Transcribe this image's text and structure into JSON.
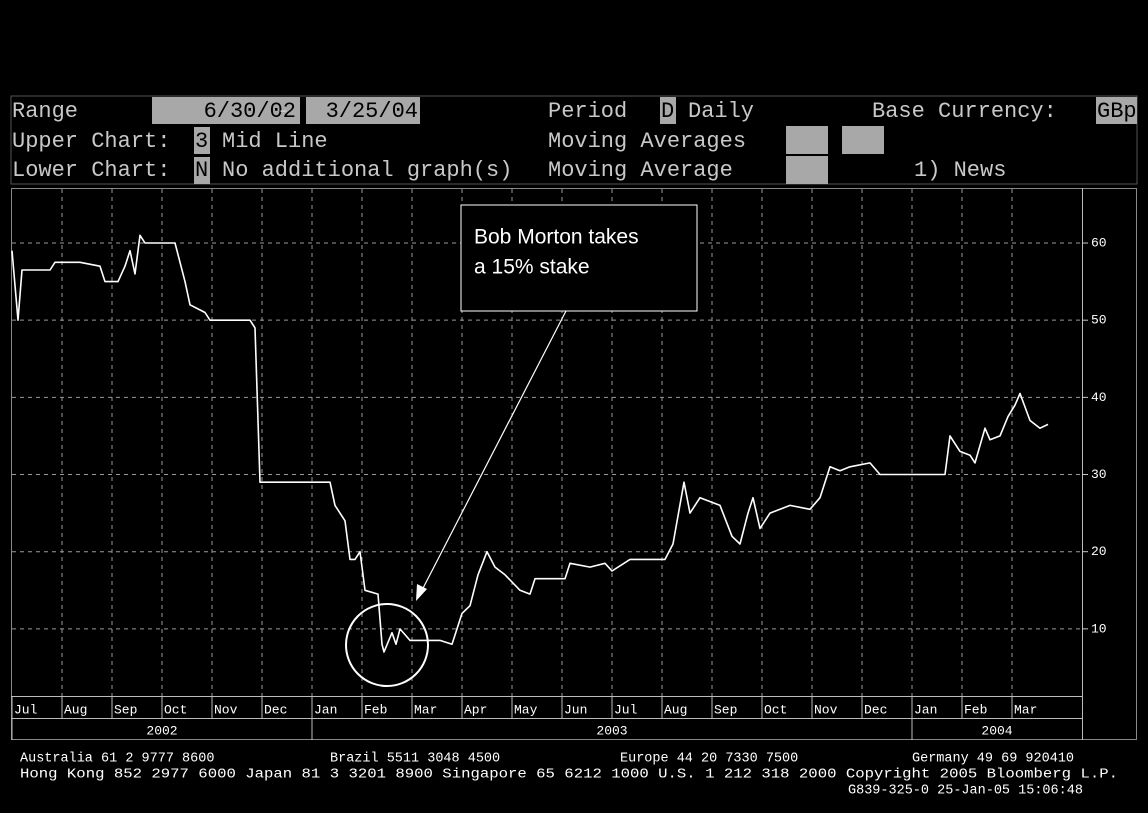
{
  "header": {
    "range_label": "Range",
    "range_start": "6/30/02",
    "range_sep": "-",
    "range_end": "3/25/04",
    "period_label": "Period",
    "period_code": "D",
    "period_value": "Daily",
    "base_currency_label": "Base Currency:",
    "base_currency": "GBp",
    "upper_label": "Upper Chart:",
    "upper_code": "3",
    "upper_value": "Mid Line",
    "moving_averages_label": "Moving Averages",
    "lower_label": "Lower Chart:",
    "lower_code": "N",
    "lower_value": "No additional graph(s)",
    "moving_average_label": "Moving Average",
    "news": "1) News"
  },
  "chart_data": {
    "type": "line",
    "annotation": [
      "Bob Morton takes",
      "a 15% stake"
    ],
    "xlim": [
      0,
      21.4
    ],
    "xticks": [
      {
        "value": 0,
        "label": "Jul"
      },
      {
        "value": 1,
        "label": "Aug"
      },
      {
        "value": 2,
        "label": "Sep"
      },
      {
        "value": 3,
        "label": "Oct"
      },
      {
        "value": 4,
        "label": "Nov"
      },
      {
        "value": 5,
        "label": "Dec"
      },
      {
        "value": 6,
        "label": "Jan"
      },
      {
        "value": 7,
        "label": "Feb"
      },
      {
        "value": 8,
        "label": "Mar"
      },
      {
        "value": 9,
        "label": "Apr"
      },
      {
        "value": 10,
        "label": "May"
      },
      {
        "value": 11,
        "label": "Jun"
      },
      {
        "value": 12,
        "label": "Jul"
      },
      {
        "value": 13,
        "label": "Aug"
      },
      {
        "value": 14,
        "label": "Sep"
      },
      {
        "value": 15,
        "label": "Oct"
      },
      {
        "value": 16,
        "label": "Nov"
      },
      {
        "value": 17,
        "label": "Dec"
      },
      {
        "value": 18,
        "label": "Jan"
      },
      {
        "value": 19,
        "label": "Feb"
      },
      {
        "value": 20,
        "label": "Mar"
      }
    ],
    "year_labels": [
      {
        "value": 0,
        "label": "2002"
      },
      {
        "value": 6,
        "label": "2003"
      },
      {
        "value": 18,
        "label": "2004"
      }
    ],
    "ylim": [
      1.3,
      67
    ],
    "yticks": [
      10,
      20,
      30,
      40,
      50,
      60
    ],
    "grid": true,
    "series": [
      {
        "color": "#ffffff",
        "x": [
          0,
          0.12,
          0.2,
          0.76,
          0.86,
          1.36,
          1.76,
          1.86,
          2.12,
          2.26,
          2.36,
          2.46,
          2.56,
          2.66,
          3.26,
          3.46,
          3.56,
          3.86,
          3.96,
          4.76,
          4.86,
          4.96,
          5.16,
          6.36,
          6.46,
          6.66,
          6.76,
          6.86,
          6.96,
          7.06,
          7.32,
          7.4,
          7.44,
          7.6,
          7.68,
          7.76,
          7.96,
          8.56,
          8.8,
          9,
          9.16,
          9.32,
          9.5,
          9.66,
          9.86,
          10.16,
          10.36,
          10.46,
          11.06,
          11.16,
          11.56,
          11.86,
          12,
          12.36,
          13.06,
          13.22,
          13.44,
          13.56,
          13.76,
          14.16,
          14.4,
          14.56,
          14.72,
          14.82,
          14.96,
          15.16,
          15.56,
          15.96,
          16.16,
          16.36,
          16.56,
          16.76,
          17.16,
          17.36,
          18.56,
          18.66,
          18.76,
          18.96,
          19.16,
          19.26,
          19.46,
          19.56,
          19.76,
          19.92,
          20.06,
          20.16,
          20.36,
          20.56,
          20.72
        ],
        "values": [
          59,
          50,
          56.5,
          56.5,
          57.5,
          57.5,
          57,
          55,
          55,
          57,
          59,
          56,
          61,
          60,
          60,
          55,
          52,
          51,
          50,
          50,
          49,
          29,
          29,
          29,
          26,
          24,
          19,
          19,
          20,
          15,
          14.5,
          8,
          7,
          9.5,
          8,
          10,
          8.5,
          8.5,
          8,
          12,
          13,
          17,
          20,
          18,
          17,
          15,
          14.5,
          16.5,
          16.5,
          18.5,
          18,
          18.5,
          17.5,
          19,
          19,
          21,
          29,
          25,
          27,
          26,
          22,
          21,
          25,
          27,
          23,
          25,
          26,
          25.5,
          27,
          31,
          30.5,
          31,
          31.5,
          30,
          30,
          30,
          35,
          33,
          32.5,
          31.5,
          36,
          34.5,
          35,
          37.5,
          39,
          40.5,
          37,
          36,
          36.5
        ]
      }
    ]
  },
  "footer": {
    "line1": [
      "Australia 61 2 9777 8600",
      "Brazil 5511 3048 4500",
      "Europe 44 20 7330 7500",
      "Germany 49 69 920410"
    ],
    "line2": "Hong Kong 852 2977 6000 Japan 81 3 3201 8900 Singapore 65 6212 1000 U.S. 1 212 318 2000 Copyright 2005 Bloomberg L.P.",
    "line3": "G839-325-0 25-Jan-05 15:06:48"
  }
}
